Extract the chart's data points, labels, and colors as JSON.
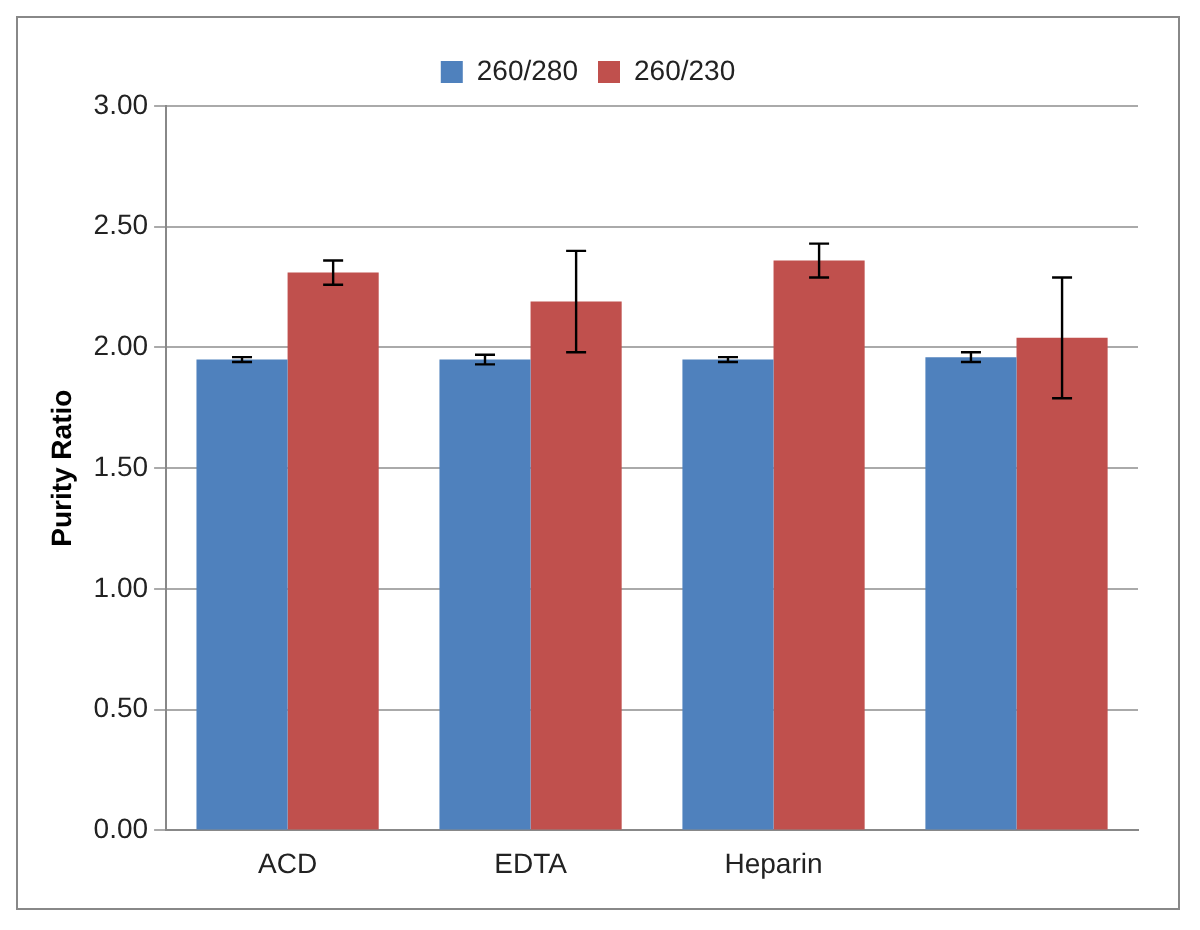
{
  "chart_data": {
    "type": "bar",
    "ylabel": "Purity Ratio",
    "categories": [
      "ACD",
      "EDTA",
      "Heparin",
      null
    ],
    "series": [
      {
        "name": "260/280",
        "color": "#4f81bd",
        "values": [
          1.95,
          1.95,
          1.95,
          1.96
        ],
        "errors": [
          0.01,
          0.02,
          0.01,
          0.02
        ]
      },
      {
        "name": "260/230",
        "color": "#c0504d",
        "values": [
          2.31,
          2.19,
          2.36,
          2.04
        ],
        "errors": [
          0.05,
          0.21,
          0.07,
          0.25
        ]
      }
    ],
    "ylim": [
      0,
      3
    ],
    "yticks": [
      {
        "value": 0,
        "label": "0.00"
      },
      {
        "value": 0.5,
        "label": "0.50"
      },
      {
        "value": 1,
        "label": "1.00"
      },
      {
        "value": 1.5,
        "label": "1.50"
      },
      {
        "value": 2,
        "label": "2.00"
      },
      {
        "value": 2.5,
        "label": "2.50"
      },
      {
        "value": 3,
        "label": "3.00"
      }
    ],
    "grid": "y",
    "legend": "top"
  }
}
